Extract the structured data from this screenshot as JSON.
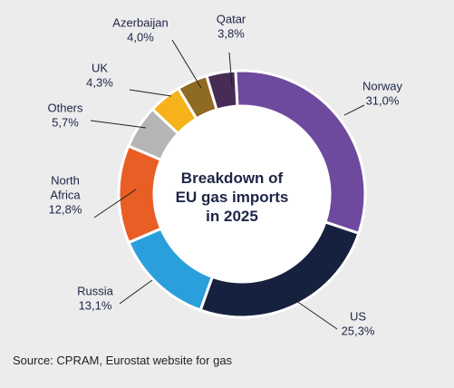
{
  "chart_data": {
    "type": "pie",
    "title_lines": [
      "Breakdown of",
      "EU gas imports",
      "in 2025"
    ],
    "slices": [
      {
        "name": "Norway",
        "value_label": "31,0%",
        "value": 31.0,
        "color": "#6e4a9e"
      },
      {
        "name": "US",
        "value_label": "25,3%",
        "value": 25.3,
        "color": "#16213f"
      },
      {
        "name": "Russia",
        "value_label": "13,1%",
        "value": 13.1,
        "color": "#2b9fdb"
      },
      {
        "name": "North Africa",
        "value_label": "12,8%",
        "value": 12.8,
        "color": "#e85e25"
      },
      {
        "name": "Others",
        "value_label": "5,7%",
        "value": 5.7,
        "color": "#b5b5b5"
      },
      {
        "name": "UK",
        "value_label": "4,3%",
        "value": 4.3,
        "color": "#f6b21b"
      },
      {
        "name": "Azerbaijan",
        "value_label": "4,0%",
        "value": 4.0,
        "color": "#8f6a22"
      },
      {
        "name": "Qatar",
        "value_label": "3,8%",
        "value": 3.8,
        "color": "#472c55"
      }
    ]
  },
  "source": "Source: CPRAM, Eurostat website for gas"
}
